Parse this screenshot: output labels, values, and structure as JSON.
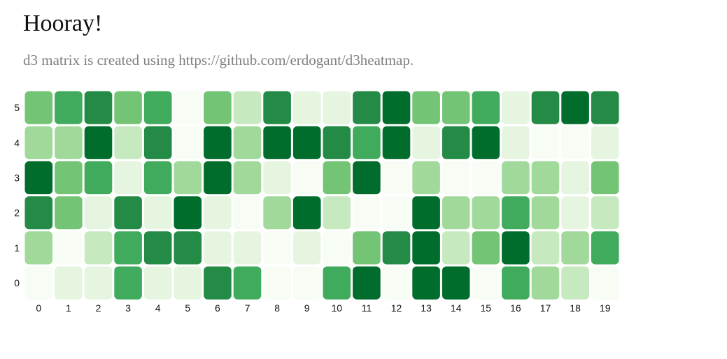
{
  "header": {
    "title": "Hooray!",
    "subtitle": "d3 matrix is created using https://github.com/erdogant/d3heatmap."
  },
  "chart_data": {
    "type": "heatmap",
    "x": [
      0,
      1,
      2,
      3,
      4,
      5,
      6,
      7,
      8,
      9,
      10,
      11,
      12,
      13,
      14,
      15,
      16,
      17,
      18,
      19
    ],
    "y": [
      5,
      4,
      3,
      2,
      1,
      0
    ],
    "value_range": [
      0,
      8
    ],
    "colorscale": [
      "#f7fcf5",
      "#e5f5e0",
      "#c7e9c0",
      "#a1d99b",
      "#74c476",
      "#41ab5d",
      "#238b45",
      "#006d2c",
      "#00441b"
    ],
    "values": [
      [
        4,
        5,
        6,
        4,
        5,
        0,
        4,
        2,
        6,
        1,
        1,
        6,
        7,
        4,
        4,
        5,
        1,
        6,
        7,
        6
      ],
      [
        3,
        3,
        7,
        2,
        6,
        0,
        7,
        3,
        7,
        7,
        6,
        5,
        7,
        1,
        6,
        7,
        1,
        0,
        0,
        1
      ],
      [
        7,
        4,
        5,
        1,
        5,
        3,
        7,
        3,
        1,
        0,
        4,
        7,
        0,
        3,
        0,
        0,
        3,
        3,
        1,
        4
      ],
      [
        6,
        4,
        1,
        6,
        1,
        7,
        1,
        0,
        3,
        7,
        2,
        0,
        0,
        7,
        3,
        3,
        5,
        3,
        1,
        2
      ],
      [
        3,
        0,
        2,
        5,
        6,
        6,
        1,
        1,
        0,
        1,
        0,
        4,
        6,
        7,
        2,
        4,
        7,
        2,
        3,
        5
      ],
      [
        0,
        1,
        1,
        5,
        1,
        1,
        6,
        5,
        0,
        0,
        5,
        7,
        0,
        7,
        7,
        0,
        5,
        3,
        2,
        0
      ]
    ],
    "grid": false
  }
}
